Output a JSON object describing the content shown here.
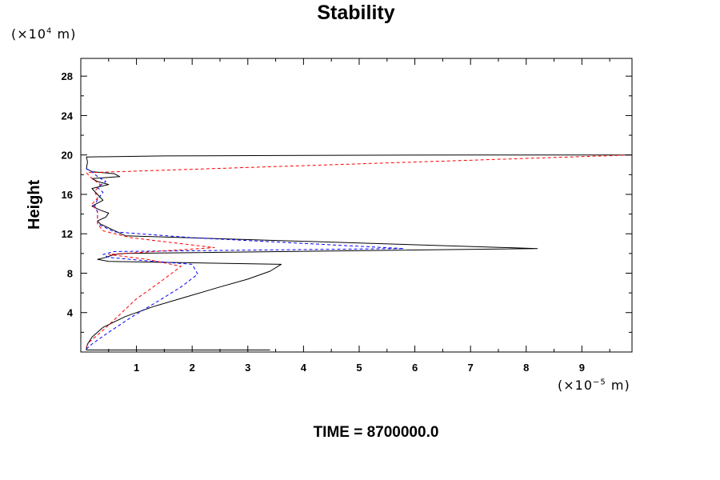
{
  "chart_data": {
    "type": "line",
    "title": "Stability",
    "ylabel": "Height",
    "y_unit_prefix": "(×10",
    "y_unit_exp": "4",
    "y_unit_suffix": " m)",
    "x_unit_prefix": "(×10",
    "x_unit_exp": "−5",
    "x_unit_suffix": " m)",
    "time_label": "TIME = 8700000.0",
    "xlim": [
      0,
      9.9
    ],
    "ylim": [
      0,
      29.8
    ],
    "x_ticks": [
      "1",
      "2",
      "3",
      "4",
      "5",
      "6",
      "7",
      "8",
      "9"
    ],
    "x_tick_values": [
      1,
      2,
      3,
      4,
      5,
      6,
      7,
      8,
      9
    ],
    "y_ticks": [
      "4",
      "8",
      "12",
      "16",
      "20",
      "24",
      "28"
    ],
    "y_tick_values": [
      4,
      8,
      12,
      16,
      20,
      24,
      28
    ],
    "series": [
      {
        "color": "#000000",
        "style": "solid",
        "x": [
          3.4,
          0.1,
          0.1,
          0.12,
          0.2,
          0.4,
          0.8,
          1.3,
          1.9,
          2.5,
          3.0,
          3.4,
          3.6,
          0.5,
          0.3,
          0.45,
          0.6,
          0.8,
          8.2,
          0.8,
          0.5,
          0.35,
          0.3,
          0.45,
          0.5,
          0.35,
          0.2,
          0.4,
          0.3,
          0.2,
          0.5,
          0.3,
          0.2,
          0.7,
          0.6,
          0.2,
          0.1,
          0.12,
          0.1,
          1.5,
          4.0,
          7.0,
          9.9
        ],
        "y": [
          0.2,
          0.2,
          0.4,
          0.8,
          1.5,
          2.5,
          3.6,
          4.6,
          5.6,
          6.6,
          7.4,
          8.2,
          8.9,
          9.2,
          9.4,
          9.6,
          9.9,
          10.0,
          10.5,
          11.8,
          12.6,
          13.0,
          13.3,
          13.7,
          14.1,
          14.4,
          14.8,
          15.4,
          16.0,
          16.6,
          17.0,
          17.3,
          17.6,
          17.8,
          18.1,
          18.3,
          18.6,
          19.3,
          19.8,
          19.9,
          19.95,
          20.0,
          20.0
        ]
      },
      {
        "color": "#0000ff",
        "style": "dashed",
        "x": [
          0.1,
          0.2,
          0.5,
          0.9,
          1.4,
          1.8,
          2.1,
          2.0,
          1.1,
          0.5,
          0.4,
          0.6,
          5.8,
          2.0,
          0.6,
          0.3,
          0.3,
          0.3,
          0.25,
          0.3,
          0.4,
          0.3,
          0.45,
          0.3,
          0.2,
          0.1
        ],
        "y": [
          0.3,
          0.8,
          2.0,
          3.5,
          5.2,
          6.6,
          7.9,
          8.9,
          9.3,
          9.6,
          9.9,
          10.2,
          10.5,
          11.6,
          12.2,
          13.0,
          13.6,
          14.2,
          14.8,
          15.5,
          16.2,
          16.7,
          17.3,
          17.8,
          18.3,
          18.6
        ]
      },
      {
        "color": "#ff0000",
        "style": "dashed",
        "x": [
          0.1,
          0.15,
          0.4,
          0.7,
          1.0,
          1.4,
          1.8,
          1.2,
          0.5,
          2.4,
          0.9,
          0.4,
          0.3,
          0.3,
          0.3,
          0.2,
          0.3,
          0.25,
          0.35,
          0.2,
          0.1,
          9.9
        ],
        "y": [
          0.5,
          1.0,
          2.2,
          3.8,
          5.4,
          7.0,
          8.7,
          9.4,
          9.9,
          10.6,
          11.6,
          12.3,
          13.0,
          13.6,
          14.3,
          15.0,
          15.6,
          16.3,
          17.0,
          17.6,
          18.2,
          20.0
        ]
      }
    ]
  }
}
